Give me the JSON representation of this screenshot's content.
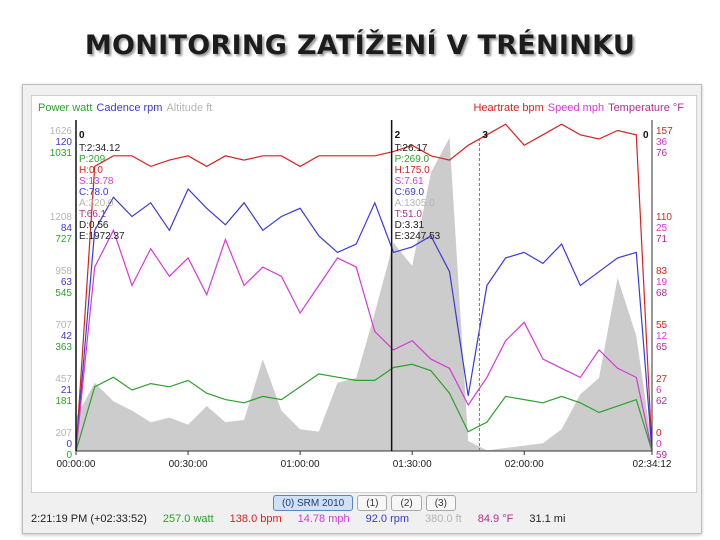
{
  "page": {
    "title": "MONITORING ZATÍŽENÍ V TRÉNINKU"
  },
  "legend": {
    "left": [
      {
        "label": "Power watt",
        "color": "#2ea02e"
      },
      {
        "label": "Cadence rpm",
        "color": "#3a3ad6"
      },
      {
        "label": "Altitude ft",
        "color": "#b5b5b5"
      }
    ],
    "right": [
      {
        "label": "Heartrate bpm",
        "color": "#d62222"
      },
      {
        "label": "Speed mph",
        "color": "#d43ad4"
      },
      {
        "label": "Temperature °F",
        "color": "#b03090"
      }
    ]
  },
  "tabs": [
    {
      "label": "(0) SRM 2010",
      "active": true
    },
    {
      "label": "(1)",
      "active": false
    },
    {
      "label": "(2)",
      "active": false
    },
    {
      "label": "(3)",
      "active": false
    }
  ],
  "status": [
    {
      "text": "2:21:19 PM (+02:33:52)",
      "color": "#222222"
    },
    {
      "text": "257.0 watt",
      "color": "#2ea02e"
    },
    {
      "text": "138.0 bpm",
      "color": "#d62222"
    },
    {
      "text": "14.78 mph",
      "color": "#d43ad4"
    },
    {
      "text": "92.0 rpm",
      "color": "#3a3ad6"
    },
    {
      "text": "380.0 ft",
      "color": "#b5b5b5"
    },
    {
      "text": "84.9 °F",
      "color": "#b03090"
    },
    {
      "text": "31.1 mi",
      "color": "#222222"
    }
  ],
  "markers": [
    {
      "x_sec": 0,
      "label": "0",
      "info": [
        {
          "text": "T:2:34.12",
          "color": "#222222"
        },
        {
          "text": "P:209",
          "color": "#2ea02e"
        },
        {
          "text": "H:0.0",
          "color": "#d62222"
        },
        {
          "text": "S:13.78",
          "color": "#d43ad4"
        },
        {
          "text": "C:78.0",
          "color": "#3a3ad6"
        },
        {
          "text": "A:320.0",
          "color": "#b5b5b5"
        },
        {
          "text": "T:66.1",
          "color": "#b03090"
        },
        {
          "text": "D:0.56",
          "color": "#222222"
        },
        {
          "text": "E:1972.37",
          "color": "#222222"
        }
      ]
    },
    {
      "x_sec": 5070,
      "label": "2",
      "info": [
        {
          "text": "T:26.17",
          "color": "#222222"
        },
        {
          "text": "P:269.0",
          "color": "#2ea02e"
        },
        {
          "text": "H:175.0",
          "color": "#d62222"
        },
        {
          "text": "S:7.61",
          "color": "#d43ad4"
        },
        {
          "text": "C:69.0",
          "color": "#3a3ad6"
        },
        {
          "text": "A:1305.0",
          "color": "#b5b5b5"
        },
        {
          "text": "T:51.0",
          "color": "#b03090"
        },
        {
          "text": "D:3.31",
          "color": "#222222"
        },
        {
          "text": "E:3247.53",
          "color": "#222222"
        }
      ]
    },
    {
      "x_sec": 6480,
      "label": "3",
      "info": []
    },
    {
      "x_sec": 9252,
      "label": "0",
      "info": []
    }
  ],
  "chart_data": {
    "type": "line",
    "x_unit": "time",
    "xlim": [
      0,
      9252
    ],
    "x_ticks": [
      "00:00:00",
      "00:30:00",
      "01:00:00",
      "01:30:00",
      "02:00:00",
      "02:34:12"
    ],
    "x_tick_seconds": [
      0,
      1800,
      3600,
      5400,
      7200,
      9252
    ],
    "left_axes": [
      {
        "name": "Altitude ft",
        "color": "#b5b5b5",
        "ticks": [
          "1626",
          "1208",
          "958",
          "707",
          "457",
          "207"
        ]
      },
      {
        "name": "Cadence rpm",
        "color": "#3a3ad6",
        "ticks": [
          "120",
          "84",
          "63",
          "42",
          "21",
          "0"
        ]
      },
      {
        "name": "Power watt",
        "color": "#2ea02e",
        "ticks": [
          "1031",
          "727",
          "545",
          "363",
          "181",
          "0"
        ]
      }
    ],
    "right_axes": [
      {
        "name": "Heartrate bpm",
        "color": "#d62222",
        "ticks": [
          "157",
          "110",
          "83",
          "55",
          "27",
          "0"
        ]
      },
      {
        "name": "Speed mph",
        "color": "#d43ad4",
        "ticks": [
          "36",
          "25",
          "19",
          "12",
          "6",
          "0"
        ]
      },
      {
        "name": "Temperature °F",
        "color": "#b03090",
        "ticks": [
          "76",
          "71",
          "68",
          "65",
          "62",
          "59"
        ]
      }
    ],
    "x": [
      0,
      300,
      600,
      900,
      1200,
      1500,
      1800,
      2100,
      2400,
      2700,
      3000,
      3300,
      3600,
      3900,
      4200,
      4500,
      4800,
      5100,
      5400,
      5700,
      6000,
      6300,
      6600,
      6900,
      7200,
      7500,
      7800,
      8100,
      8400,
      8700,
      9000,
      9252
    ],
    "series": [
      {
        "name": "Altitude ft",
        "color": "#b5b5b5",
        "area": true,
        "values": [
          350,
          500,
          420,
          380,
          330,
          350,
          320,
          400,
          330,
          340,
          600,
          380,
          300,
          290,
          500,
          520,
          800,
          1100,
          1000,
          1400,
          1550,
          250,
          210,
          220,
          230,
          240,
          300,
          450,
          520,
          950,
          700,
          230
        ]
      },
      {
        "name": "Heartrate bpm",
        "color": "#d62222",
        "values": [
          0,
          135,
          140,
          140,
          135,
          138,
          140,
          135,
          140,
          138,
          140,
          140,
          135,
          140,
          140,
          140,
          140,
          142,
          145,
          140,
          138,
          145,
          150,
          155,
          145,
          150,
          155,
          150,
          148,
          152,
          150,
          0
        ]
      },
      {
        "name": "Cadence rpm",
        "color": "#3a3ad6",
        "values": [
          0,
          80,
          92,
          85,
          90,
          80,
          95,
          88,
          82,
          90,
          80,
          85,
          88,
          78,
          72,
          75,
          90,
          72,
          74,
          78,
          65,
          20,
          60,
          70,
          72,
          68,
          75,
          60,
          65,
          70,
          72,
          0
        ]
      },
      {
        "name": "Speed mph",
        "color": "#d43ad4",
        "values": [
          0,
          20,
          24,
          18,
          22,
          19,
          21,
          17,
          23,
          18,
          20,
          19,
          15,
          18,
          21,
          20,
          13,
          11,
          12,
          10,
          9,
          5,
          8,
          12,
          14,
          10,
          9,
          8,
          11,
          9,
          8,
          0
        ]
      },
      {
        "name": "Power watt",
        "color": "#2ea02e",
        "values": [
          0,
          200,
          230,
          190,
          210,
          200,
          220,
          180,
          160,
          150,
          170,
          160,
          200,
          240,
          230,
          220,
          220,
          260,
          270,
          250,
          180,
          60,
          90,
          170,
          160,
          150,
          170,
          150,
          120,
          140,
          160,
          0
        ]
      }
    ]
  }
}
